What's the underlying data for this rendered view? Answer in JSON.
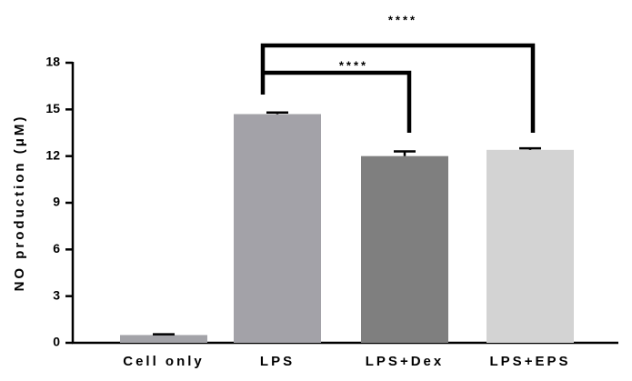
{
  "chart_data": {
    "type": "bar",
    "y_label": "NO production (μM)",
    "categories": [
      "Cell only",
      "LPS",
      "LPS+Dex",
      "LPS+EPS"
    ],
    "values": [
      0.5,
      14.7,
      12.0,
      12.4
    ],
    "errors": [
      0.05,
      0.1,
      0.3,
      0.1
    ],
    "colors": [
      "#a3a3a8",
      "#a3a2a8",
      "#7f7f7f",
      "#d3d3d3"
    ],
    "ylim": [
      0,
      18
    ],
    "yticks": [
      0,
      3,
      6,
      9,
      12,
      15,
      18
    ],
    "annotations": [
      "****",
      "****"
    ]
  }
}
